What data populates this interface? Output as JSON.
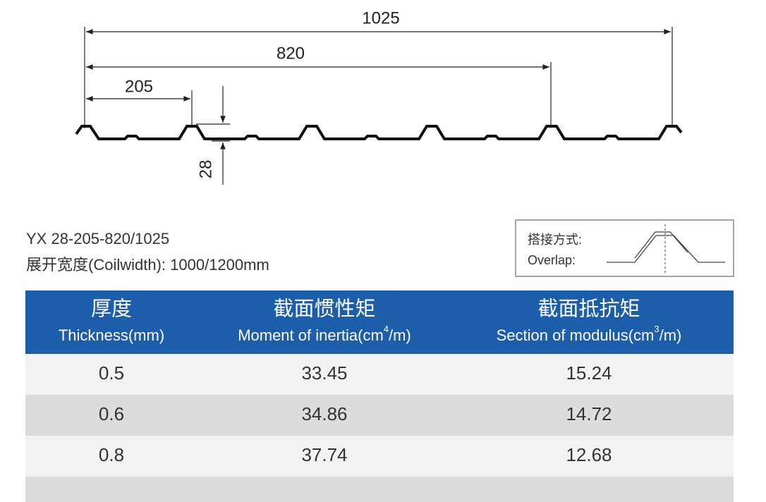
{
  "diagram": {
    "dimensions": {
      "total": "1025",
      "middle": "820",
      "pitch": "205",
      "height": "28"
    }
  },
  "info": {
    "model": "YX 28-205-820/1025",
    "coil_width": "展开宽度(Coilwidth): 1000/1200mm"
  },
  "overlap": {
    "label_cn": "搭接方式:",
    "label_en": "Overlap:"
  },
  "table": {
    "headers": [
      {
        "cn": "厚度",
        "en": "Thickness(mm)"
      },
      {
        "cn": "截面惯性矩",
        "en": "Moment of inertia(cm",
        "sup": "4",
        "tail": "/m)"
      },
      {
        "cn": "截面抵抗矩",
        "en": "Section of modulus(cm",
        "sup": "3",
        "tail": "/m)"
      }
    ],
    "rows": [
      [
        "0.5",
        "33.45",
        "15.24"
      ],
      [
        "0.6",
        "34.86",
        "14.72"
      ],
      [
        "0.8",
        "37.74",
        "12.68"
      ]
    ]
  }
}
